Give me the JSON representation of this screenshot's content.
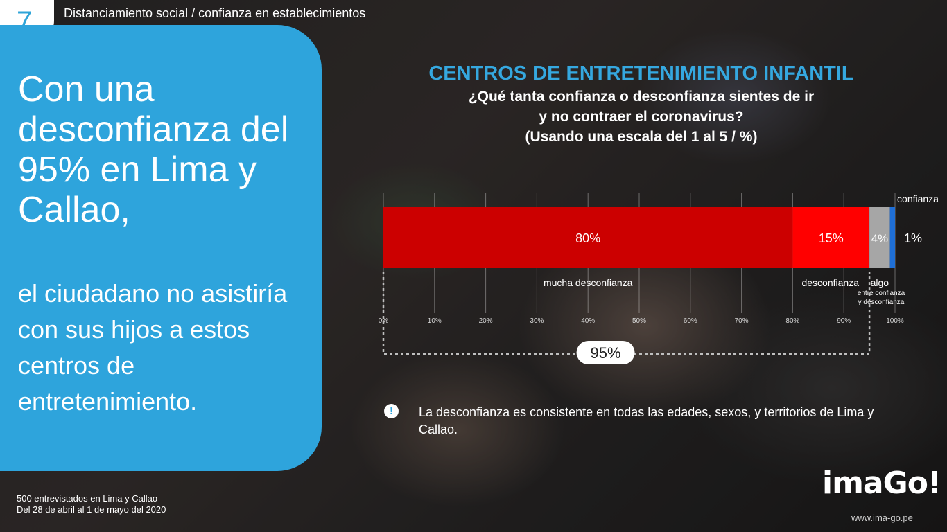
{
  "slide": {
    "number": "7",
    "section_title": "Distanciamiento social / confianza en establecimientos"
  },
  "panel": {
    "headline_big": "Con una desconfianza del 95% en Lima y Callao,",
    "headline_small": "el ciudadano no asistiría con sus hijos a estos centros de entretenimiento."
  },
  "footer": {
    "line1": "500 entrevistados en Lima y Callao",
    "line2": "Del 28 de abril al 1 de mayo del 2020",
    "logo": "imaGo!",
    "website": "www.ima-go.pe"
  },
  "note": {
    "icon": "exclamation-icon",
    "text": "La desconfianza es consistente en todas las edades, sexos, y territorios de Lima y Callao."
  },
  "chart_data": {
    "type": "bar",
    "orientation": "horizontal-stacked",
    "title": "CENTROS DE ENTRETENIMIENTO INFANTIL",
    "subtitle_lines": [
      "¿Qué tanta confianza o desconfianza sientes de ir",
      "y no contraer el coronavirus?",
      "(Usando una escala del 1 al 5 / %)"
    ],
    "xlim": [
      0,
      100
    ],
    "xticks": [
      0,
      10,
      20,
      30,
      40,
      50,
      60,
      70,
      80,
      90,
      100
    ],
    "tick_labels": [
      "0%",
      "10%",
      "20%",
      "30%",
      "40%",
      "50%",
      "60%",
      "70%",
      "80%",
      "90%",
      "100%"
    ],
    "grid": true,
    "segments": [
      {
        "label": "mucha desconfianza",
        "value": 80,
        "value_label": "80%",
        "color": "#cc0000"
      },
      {
        "label": "desconfianza",
        "value": 15,
        "value_label": "15%",
        "color": "#ff0000"
      },
      {
        "label": "algo",
        "sublabel_1": "entre confianza",
        "sublabel_2": "y desconfianza",
        "value": 4,
        "value_label": "4%",
        "color": "#a6a6a6"
      },
      {
        "label": "confianza",
        "value": 1,
        "value_label": "1%",
        "color": "#1f6fd6"
      }
    ],
    "bracket": {
      "from": 0,
      "to": 95,
      "label": "95%"
    }
  }
}
